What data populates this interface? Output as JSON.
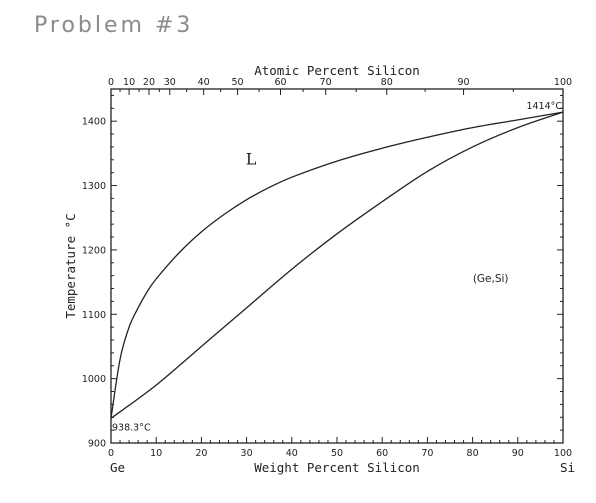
{
  "problem_label": "Problem #3",
  "chart_data": {
    "type": "line",
    "top_axis": {
      "label": "Atomic Percent Silicon",
      "tick_labels": [
        "0",
        "10",
        "20",
        "30",
        "40",
        "50",
        "60",
        "70",
        "80",
        "90",
        "100"
      ],
      "tick_positions_wt_percent": [
        0,
        4.0,
        8.4,
        13.0,
        20.5,
        28.0,
        37.5,
        47.5,
        61.0,
        78.0,
        100
      ]
    },
    "bottom_axis": {
      "label": "Weight Percent Silicon",
      "range": [
        0,
        100
      ],
      "tick_labels": [
        "0",
        "10",
        "20",
        "30",
        "40",
        "50",
        "60",
        "70",
        "80",
        "90",
        "100"
      ],
      "tick_values": [
        0,
        10,
        20,
        30,
        40,
        50,
        60,
        70,
        80,
        90,
        100
      ],
      "left_end_label": "Ge",
      "right_end_label": "Si"
    },
    "y_axis": {
      "label": "Temperature °C",
      "range": [
        900,
        1450
      ],
      "tick_labels": [
        "900",
        "1000",
        "1100",
        "1200",
        "1300",
        "1400"
      ],
      "tick_values": [
        900,
        1000,
        1100,
        1200,
        1300,
        1400
      ]
    },
    "series": [
      {
        "role": "liquidus",
        "x": [
          0,
          2,
          4,
          6,
          8,
          10,
          15,
          20,
          25,
          30,
          35,
          40,
          50,
          60,
          70,
          80,
          90,
          100
        ],
        "y": [
          938.3,
          1030,
          1080,
          1110,
          1135,
          1155,
          1195,
          1228,
          1255,
          1278,
          1297,
          1313,
          1338,
          1358,
          1375,
          1390,
          1402,
          1414
        ]
      },
      {
        "role": "solidus",
        "x": [
          0,
          10,
          20,
          30,
          40,
          50,
          60,
          70,
          80,
          90,
          100
        ],
        "y": [
          938.3,
          990,
          1050,
          1110,
          1170,
          1225,
          1275,
          1322,
          1360,
          1390,
          1414
        ]
      }
    ],
    "annotations": [
      {
        "text": "L",
        "x": 31,
        "y": 1342
      },
      {
        "text": "(Ge,Si)",
        "x": 84,
        "y": 1150
      },
      {
        "text": "1414°C",
        "x": 100,
        "y": 1414
      },
      {
        "text": "938.3°C",
        "x": 0,
        "y": 938.3
      }
    ],
    "grid": false
  }
}
